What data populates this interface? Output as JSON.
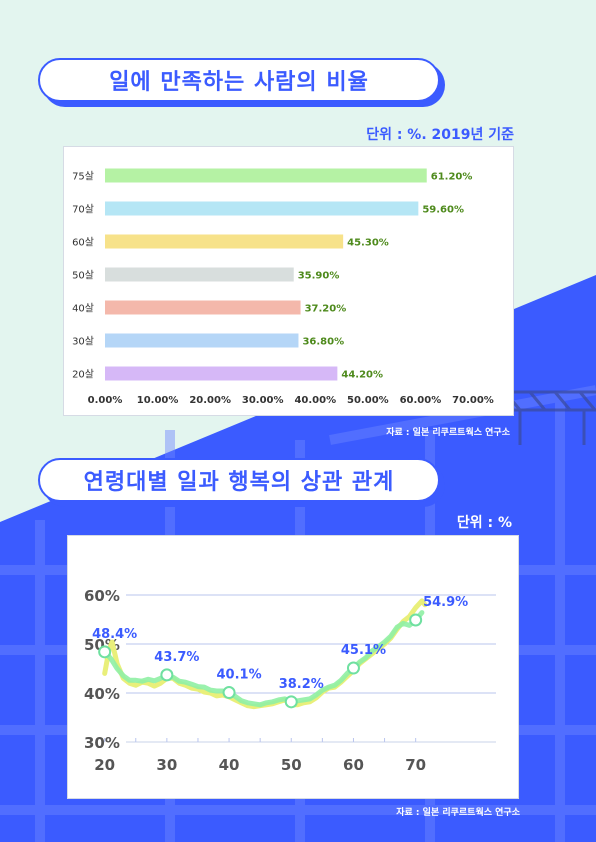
{
  "title1": "일에 만족하는 사람의 비율",
  "unit1": "단위 : %. 2019년 기준",
  "source1": "자료 : 일본 리쿠르트웍스 연구소",
  "title2": "연령대별 일과 행복의 상관 관계",
  "unit2": "단위 : %",
  "source2": "자료 : 일본 리쿠르트웍스 연구소",
  "colors": {
    "accent": "#3b5bff",
    "mint_bg": "#e3f5ef",
    "value_label": "#4e8a1c",
    "line_green": "#8ff0a4",
    "line_yellow": "#e9ef7a"
  },
  "chart_data": [
    {
      "type": "bar",
      "orientation": "horizontal",
      "categories": [
        "75살",
        "70살",
        "60살",
        "50살",
        "40살",
        "30살",
        "20살"
      ],
      "values": [
        61.2,
        59.6,
        45.3,
        35.9,
        37.2,
        36.8,
        44.2
      ],
      "value_labels": [
        "61.20%",
        "59.60%",
        "45.30%",
        "35.90%",
        "37.20%",
        "36.80%",
        "44.20%"
      ],
      "bar_colors": [
        "#b5f2a4",
        "#b5e6f5",
        "#f7e28a",
        "#d8dedd",
        "#f4b8ab",
        "#b5d6f7",
        "#d6b8f7"
      ],
      "xlim": [
        0,
        70
      ],
      "xticks": [
        "0.00%",
        "10.00%",
        "20.00%",
        "30.00%",
        "40.00%",
        "50.00%",
        "60.00%",
        "70.00%"
      ],
      "grid": false
    },
    {
      "type": "line",
      "x_ticks": [
        "20",
        "30",
        "40",
        "50",
        "60",
        "70"
      ],
      "y_ticks": [
        "30%",
        "40%",
        "50%",
        "60%"
      ],
      "ylim": [
        30,
        60
      ],
      "xlim": [
        17,
        77
      ],
      "grid": true,
      "markers": [
        {
          "x": 20,
          "y": 48.4,
          "label": "48.4%"
        },
        {
          "x": 30,
          "y": 43.7,
          "label": "43.7%"
        },
        {
          "x": 40,
          "y": 40.1,
          "label": "40.1%"
        },
        {
          "x": 50,
          "y": 38.2,
          "label": "38.2%"
        },
        {
          "x": 60,
          "y": 45.1,
          "label": "45.1%"
        },
        {
          "x": 70,
          "y": 54.9,
          "label": "54.9%"
        }
      ],
      "series": [
        {
          "values": [
            [
              20,
              48.4
            ],
            [
              21,
              47
            ],
            [
              22,
              45
            ],
            [
              23,
              43.5
            ],
            [
              24,
              42.6
            ],
            [
              25,
              42.6
            ],
            [
              26,
              42.4
            ],
            [
              27,
              42.8
            ],
            [
              28,
              42.5
            ],
            [
              29,
              43
            ],
            [
              30,
              43.7
            ],
            [
              31,
              43.2
            ],
            [
              32,
              42.4
            ],
            [
              33,
              42.2
            ],
            [
              34,
              41.8
            ],
            [
              35,
              41.3
            ],
            [
              36,
              41.2
            ],
            [
              37,
              40.6
            ],
            [
              38,
              40.4
            ],
            [
              39,
              40.4
            ],
            [
              40,
              40.1
            ],
            [
              41,
              39.3
            ],
            [
              42,
              38.4
            ],
            [
              43,
              38
            ],
            [
              44,
              37.8
            ],
            [
              45,
              37.6
            ],
            [
              46,
              38
            ],
            [
              47,
              38.2
            ],
            [
              48,
              38.6
            ],
            [
              49,
              38.8
            ],
            [
              50,
              38.2
            ],
            [
              51,
              38.4
            ],
            [
              52,
              38.6
            ],
            [
              53,
              38.8
            ],
            [
              54,
              39.6
            ],
            [
              55,
              40.6
            ],
            [
              56,
              41.2
            ],
            [
              57,
              41.6
            ],
            [
              58,
              42.6
            ],
            [
              59,
              44
            ],
            [
              60,
              45.1
            ],
            [
              61,
              46.3
            ],
            [
              62,
              47.2
            ],
            [
              63,
              48.6
            ],
            [
              64,
              49.4
            ],
            [
              65,
              50.4
            ],
            [
              66,
              51.6
            ],
            [
              67,
              53.4
            ],
            [
              68,
              54.2
            ],
            [
              69,
              53.8
            ],
            [
              70,
              54.9
            ],
            [
              71,
              56.4
            ]
          ]
        },
        {
          "values": [
            [
              20,
              44
            ],
            [
              20.7,
              48.8
            ],
            [
              21.2,
              50.4
            ],
            [
              22,
              46
            ],
            [
              23,
              43
            ],
            [
              24,
              42
            ],
            [
              25,
              41.6
            ],
            [
              26,
              42.2
            ],
            [
              27,
              42
            ],
            [
              28,
              41.4
            ],
            [
              29,
              42
            ],
            [
              30,
              43
            ],
            [
              31,
              43
            ],
            [
              32,
              42
            ],
            [
              33,
              41.6
            ],
            [
              34,
              41
            ],
            [
              35,
              40.8
            ],
            [
              36,
              40.2
            ],
            [
              37,
              40
            ],
            [
              38,
              39.4
            ],
            [
              39,
              39.6
            ],
            [
              40,
              39.2
            ],
            [
              41,
              38.6
            ],
            [
              42,
              38
            ],
            [
              43,
              37.4
            ],
            [
              44,
              37.2
            ],
            [
              45,
              37.4
            ],
            [
              46,
              37.6
            ],
            [
              47,
              37.8
            ],
            [
              48,
              38.2
            ],
            [
              49,
              38.6
            ],
            [
              50,
              37.6
            ],
            [
              51,
              37.6
            ],
            [
              52,
              38
            ],
            [
              53,
              38.2
            ],
            [
              54,
              39
            ],
            [
              55,
              40.2
            ],
            [
              56,
              41
            ],
            [
              57,
              41.2
            ],
            [
              58,
              42.2
            ],
            [
              59,
              43.4
            ],
            [
              60,
              44.6
            ],
            [
              61,
              46
            ],
            [
              62,
              47
            ],
            [
              63,
              48
            ],
            [
              64,
              49
            ],
            [
              65,
              50
            ],
            [
              66,
              51.2
            ],
            [
              67,
              53
            ],
            [
              68,
              54.6
            ],
            [
              69,
              55.6
            ],
            [
              70,
              57.4
            ],
            [
              71,
              58.8
            ],
            [
              71.5,
              58
            ]
          ]
        }
      ]
    }
  ]
}
